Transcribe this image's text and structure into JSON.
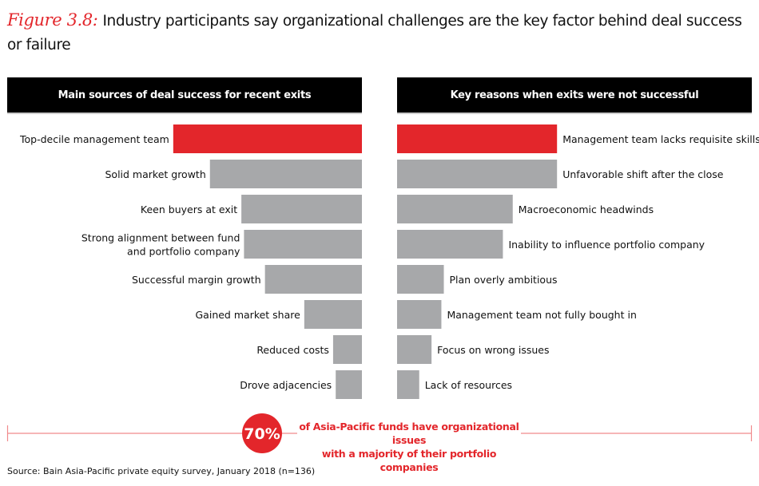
{
  "title": {
    "figure": "Figure 3.8:",
    "text": "Industry participants say organizational challenges are the key factor behind deal success or failure"
  },
  "chart_data": [
    {
      "type": "bar",
      "orientation": "horizontal",
      "title": "Main sources of deal success for recent exits",
      "categories": [
        "Top-decile management team",
        "Solid market growth",
        "Keen buyers at exit",
        "Strong alignment between fund\nand portfolio company",
        "Successful margin growth",
        "Gained market share",
        "Reduced costs",
        "Drove adjacencies"
      ],
      "values": [
        72,
        58,
        46,
        45,
        37,
        22,
        11,
        10
      ],
      "labels": [
        "72%",
        "58",
        "46",
        "45",
        "37",
        "22",
        "11",
        "10"
      ],
      "highlight_index": 0,
      "unit": "%"
    },
    {
      "type": "bar",
      "orientation": "horizontal",
      "title": "Key reasons when exits were not successful",
      "categories": [
        "Management team lacks requisite skills",
        "Unfavorable shift after the close",
        "Macroeconomic headwinds",
        "Inability to influence portfolio company",
        "Plan overly ambitious",
        "Management team not fully bought in",
        "Focus on wrong issues",
        "Lack of resources"
      ],
      "values": [
        65,
        65,
        47,
        43,
        19,
        18,
        14,
        9
      ],
      "labels": [
        "65%",
        "65",
        "47",
        "43",
        "19",
        "18",
        "14",
        "9"
      ],
      "highlight_index": 0,
      "unit": "%"
    }
  ],
  "callout": {
    "value": "70%",
    "line1": "of Asia-Pacific funds have organizational issues",
    "line2": "with a majority of their portfolio companies"
  },
  "source": "Source: Bain Asia-Pacific private equity survey, January 2018 (n=136)",
  "colors": {
    "accent": "#e3262b",
    "bar": "#a7a8aa",
    "header": "#000000"
  }
}
